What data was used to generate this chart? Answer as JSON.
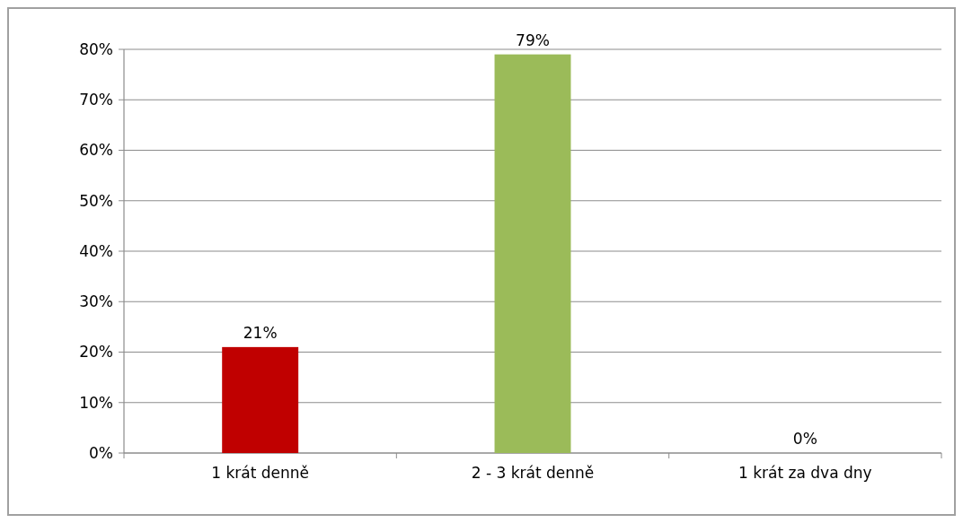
{
  "chart_data": {
    "type": "bar",
    "categories": [
      "1 krát denně",
      "2 - 3 krát denně",
      "1 krát za dva dny"
    ],
    "values": [
      21,
      79,
      0
    ],
    "colors": [
      "#c00000",
      "#9bbb59",
      "#c00000"
    ],
    "value_labels": [
      "21%",
      "79%",
      "0%"
    ],
    "ylim": [
      0,
      80
    ],
    "yticks": [
      {
        "value": 0,
        "label": "0%"
      },
      {
        "value": 10,
        "label": "10%"
      },
      {
        "value": 20,
        "label": "20%"
      },
      {
        "value": 30,
        "label": "30%"
      },
      {
        "value": 40,
        "label": "40%"
      },
      {
        "value": 50,
        "label": "50%"
      },
      {
        "value": 60,
        "label": "60%"
      },
      {
        "value": 70,
        "label": "70%"
      },
      {
        "value": 80,
        "label": "80%"
      }
    ],
    "grid": "y"
  }
}
